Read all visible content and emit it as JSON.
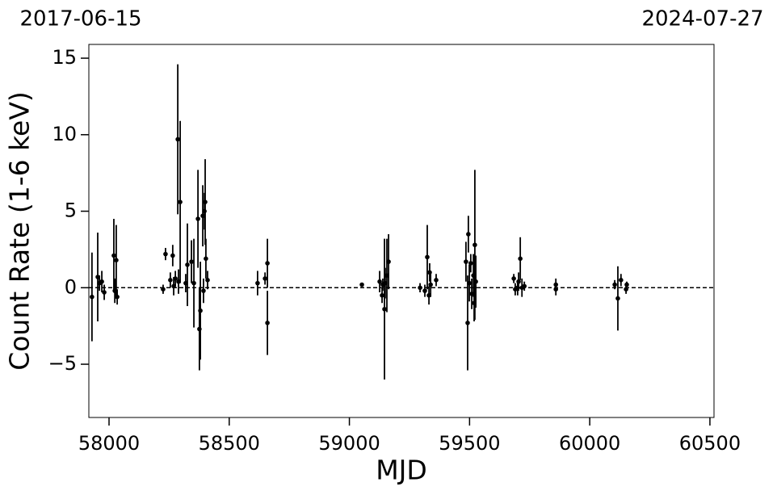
{
  "chart_data": {
    "type": "scatter",
    "annotations": [
      "2017-06-15",
      "2024-07-27"
    ],
    "xlabel": "MJD",
    "ylabel": "Count Rate (1-6 keV)",
    "xlim": [
      57916,
      60517
    ],
    "ylim": [
      -8.48,
      15.9
    ],
    "xticks": [
      58000,
      58500,
      59000,
      59500,
      60000,
      60500
    ],
    "yticks": [
      {
        "value": -5,
        "label": "−5"
      },
      0,
      5,
      10,
      15
    ],
    "reference_line": 0,
    "grid": false,
    "series": [
      {
        "color": "#000000",
        "x": [
          57929,
          57953,
          57960,
          57970,
          57980,
          58020,
          58024,
          58030,
          58034,
          58225,
          58235,
          58255,
          58265,
          58269,
          58276,
          58286,
          58296,
          58289,
          58319,
          58326,
          58343,
          58353,
          58370,
          58376,
          58380,
          58390,
          58397,
          58400,
          58403,
          58410,
          58393,
          58618,
          58649,
          58659,
          58659,
          59052,
          59126,
          59136,
          59146,
          59149,
          59156,
          59163,
          59139,
          59294,
          59314,
          59324,
          59331,
          59334,
          59338,
          59361,
          59485,
          59492,
          59495,
          59499,
          59505,
          59509,
          59516,
          59519,
          59522,
          59526,
          59684,
          59690,
          59700,
          59704,
          59711,
          59718,
          59728,
          59859,
          59859,
          60104,
          60117,
          60130,
          60151,
          60154
        ],
        "values": [
          -0.6,
          0.7,
          0.3,
          0.4,
          -0.3,
          2.1,
          -0.2,
          1.8,
          -0.6,
          -0.1,
          2.2,
          0.5,
          2.1,
          0.1,
          0.6,
          9.7,
          5.6,
          0.4,
          0.3,
          1.5,
          1.7,
          0.3,
          4.5,
          -2.7,
          -1.5,
          4.7,
          5.0,
          5.6,
          1.9,
          0.5,
          -0.2,
          0.3,
          0.6,
          1.6,
          -2.3,
          0.2,
          0.4,
          -0.5,
          -1.4,
          0.3,
          0.8,
          1.7,
          0.2,
          0.0,
          -0.2,
          2.0,
          -0.5,
          1.0,
          0.2,
          0.5,
          1.7,
          -2.3,
          3.5,
          0.3,
          1.6,
          -0.4,
          0.8,
          -1.0,
          2.8,
          0.4,
          0.6,
          -0.1,
          0.0,
          0.4,
          1.9,
          0.0,
          0.1,
          0.2,
          -0.1,
          0.2,
          -0.7,
          0.5,
          -0.1,
          0.2
        ],
        "errors": [
          2.9,
          2.9,
          0.5,
          0.7,
          0.5,
          2.4,
          0.8,
          2.3,
          0.5,
          0.3,
          0.4,
          0.5,
          0.7,
          0.6,
          0.5,
          4.9,
          5.3,
          0.8,
          0.6,
          2.7,
          1.4,
          2.9,
          3.2,
          2.7,
          3.2,
          2.0,
          1.2,
          2.8,
          1.3,
          0.6,
          0.8,
          0.8,
          0.4,
          1.6,
          2.1,
          0.1,
          0.7,
          0.5,
          4.6,
          1.0,
          2.4,
          1.8,
          0.4,
          0.3,
          0.4,
          2.1,
          0.6,
          0.6,
          0.8,
          0.4,
          1.3,
          3.1,
          1.2,
          1.2,
          0.6,
          1.0,
          1.4,
          1.2,
          4.9,
          1.7,
          0.3,
          0.4,
          0.5,
          0.6,
          1.4,
          0.6,
          0.3,
          0.4,
          0.4,
          0.3,
          2.1,
          0.4,
          0.3,
          0.2
        ]
      }
    ]
  }
}
